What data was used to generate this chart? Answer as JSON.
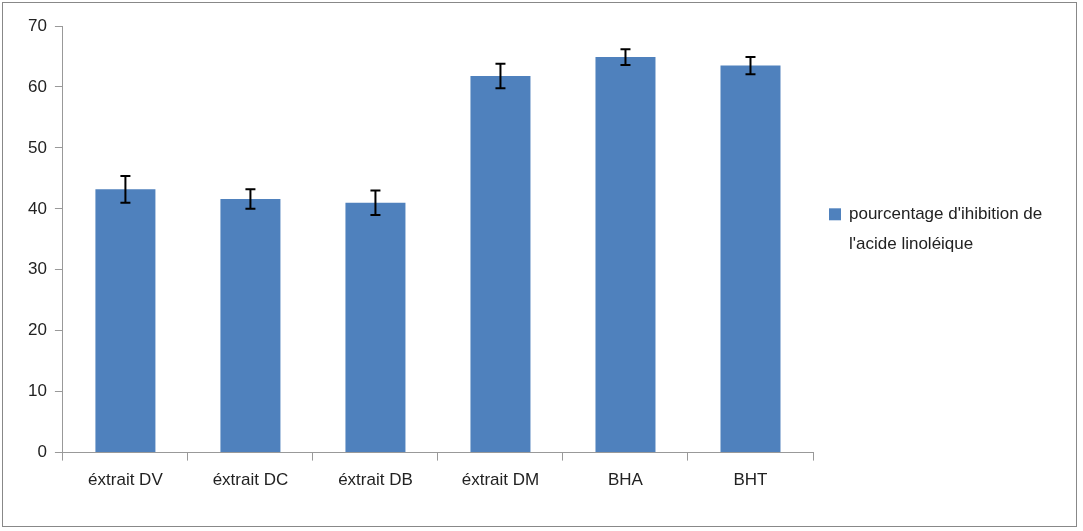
{
  "chart_data": {
    "type": "bar",
    "categories": [
      "éxtrait DV",
      "éxtrait DC",
      "éxtrait DB",
      "éxtrait DM",
      "BHA",
      "BHT"
    ],
    "series": [
      {
        "name": "pourcentage d'ihibition de l'acide linoléique",
        "color": "#4f81bd",
        "values": [
          43.2,
          41.6,
          41.0,
          61.8,
          64.9,
          63.5
        ],
        "errors": [
          2.2,
          1.6,
          2.0,
          2.0,
          1.3,
          1.4
        ]
      }
    ],
    "ylim": [
      0,
      70
    ],
    "yticks": [
      0,
      10,
      20,
      30,
      40,
      50,
      60,
      70
    ],
    "grid": false,
    "legend": "right"
  }
}
